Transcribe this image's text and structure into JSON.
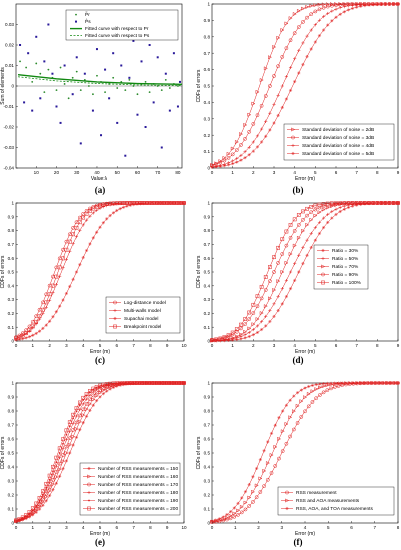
{
  "chart_data": [
    {
      "id": "a",
      "type": "scatter",
      "caption": "(a)",
      "xlabel": "Value:λ",
      "ylabel": "Sum of elements",
      "xlim": [
        0,
        82
      ],
      "ylim": [
        -0.04,
        0.04
      ],
      "xticks": [
        "10",
        "20",
        "30",
        "40",
        "50",
        "60",
        "70",
        "80"
      ],
      "yticks": [
        "-0.04",
        "-0.03",
        "-0.02",
        "-0.01",
        "0",
        "0.01",
        "0.02",
        "0.03"
      ],
      "legend": [
        "P̃r",
        "P̂s",
        "Fitted curve with respect to Pr",
        "Fitted curve with respect to Ps"
      ],
      "series": [
        {
          "name": "P̃r",
          "color": "#2b8a2b",
          "points": [
            [
              2,
              0.012
            ],
            [
              5,
              0.009
            ],
            [
              8,
              0.002
            ],
            [
              10,
              0.011
            ],
            [
              12,
              0.006
            ],
            [
              14,
              -0.003
            ],
            [
              16,
              0.008
            ],
            [
              18,
              0.004
            ],
            [
              20,
              -0.002
            ],
            [
              22,
              0.009
            ],
            [
              24,
              0.001
            ],
            [
              26,
              -0.006
            ],
            [
              28,
              0.004
            ],
            [
              30,
              0.007
            ],
            [
              32,
              -0.002
            ],
            [
              34,
              0.003
            ],
            [
              36,
              0.0
            ],
            [
              38,
              -0.004
            ],
            [
              40,
              0.005
            ],
            [
              42,
              0.002
            ],
            [
              44,
              -0.003
            ],
            [
              46,
              0.001
            ],
            [
              48,
              0.004
            ],
            [
              50,
              -0.001
            ],
            [
              52,
              0.002
            ],
            [
              54,
              -0.002
            ],
            [
              56,
              0.003
            ],
            [
              58,
              0.0
            ],
            [
              60,
              -0.004
            ],
            [
              62,
              0.001
            ],
            [
              64,
              0.002
            ],
            [
              66,
              -0.003
            ],
            [
              68,
              0.001
            ],
            [
              70,
              0.0
            ],
            [
              72,
              -0.002
            ],
            [
              74,
              0.003
            ],
            [
              76,
              -0.001
            ],
            [
              78,
              0.001
            ],
            [
              80,
              0.0
            ]
          ]
        },
        {
          "name": "P̂s",
          "color": "#2a1a9a",
          "points": [
            [
              2,
              0.02
            ],
            [
              4,
              -0.008
            ],
            [
              6,
              0.016
            ],
            [
              8,
              -0.012
            ],
            [
              10,
              0.024
            ],
            [
              12,
              -0.006
            ],
            [
              14,
              0.012
            ],
            [
              16,
              0.03
            ],
            [
              18,
              0.006
            ],
            [
              20,
              -0.01
            ],
            [
              22,
              -0.018
            ],
            [
              24,
              0.01
            ],
            [
              26,
              0.034
            ],
            [
              28,
              -0.004
            ],
            [
              30,
              0.014
            ],
            [
              32,
              -0.028
            ],
            [
              34,
              0.006
            ],
            [
              36,
              0.036
            ],
            [
              38,
              -0.012
            ],
            [
              40,
              0.018
            ],
            [
              42,
              -0.024
            ],
            [
              44,
              0.008
            ],
            [
              46,
              -0.006
            ],
            [
              48,
              0.016
            ],
            [
              50,
              -0.018
            ],
            [
              52,
              0.01
            ],
            [
              54,
              -0.034
            ],
            [
              56,
              0.004
            ],
            [
              58,
              0.022
            ],
            [
              60,
              -0.014
            ],
            [
              62,
              0.012
            ],
            [
              64,
              -0.02
            ],
            [
              66,
              0.02
            ],
            [
              68,
              -0.008
            ],
            [
              70,
              0.014
            ],
            [
              72,
              -0.03
            ],
            [
              74,
              0.006
            ],
            [
              76,
              -0.012
            ],
            [
              78,
              0.016
            ],
            [
              80,
              -0.01
            ],
            [
              81,
              0.002
            ]
          ]
        },
        {
          "name": "Fitted curve with respect to Pr",
          "color": "#118811",
          "line": [
            [
              1,
              0.0055
            ],
            [
              20,
              0.0035
            ],
            [
              40,
              0.002
            ],
            [
              60,
              0.0012
            ],
            [
              82,
              0.0008
            ]
          ]
        },
        {
          "name": "Fitted curve with respect to Ps",
          "color": "#118811",
          "line": [
            [
              1,
              0.0045
            ],
            [
              20,
              0.0025
            ],
            [
              40,
              0.0012
            ],
            [
              60,
              0.0005
            ],
            [
              82,
              0.0002
            ]
          ]
        }
      ]
    },
    {
      "id": "b",
      "type": "line",
      "caption": "(b)",
      "xlabel": "Error (m)",
      "ylabel": "CDFs of errors",
      "xlim": [
        0,
        9
      ],
      "ylim": [
        0,
        1
      ],
      "xticks": [
        "0",
        "1",
        "2",
        "3",
        "4",
        "5",
        "6",
        "7",
        "8",
        "9"
      ],
      "yticks": [
        "0",
        "0.1",
        "0.2",
        "0.3",
        "0.4",
        "0.5",
        "0.6",
        "0.7",
        "0.8",
        "0.9",
        "1"
      ],
      "legend_pos": "bottom-right",
      "series": [
        {
          "name": "Standard deviation of noise = 2dB",
          "marker": "tri",
          "mu": 2.3,
          "sd": 1.1
        },
        {
          "name": "Standard deviation of noise = 3dB",
          "marker": "circle",
          "mu": 2.8,
          "sd": 1.3
        },
        {
          "name": "Standard deviation of noise = 4dB",
          "marker": "plus",
          "mu": 3.4,
          "sd": 1.4
        },
        {
          "name": "Standard deviation of noise = 5dB",
          "marker": "star",
          "mu": 3.9,
          "sd": 1.5
        }
      ]
    },
    {
      "id": "c",
      "type": "line",
      "caption": "(c)",
      "xlabel": "Error (m)",
      "ylabel": "CDFs of errors",
      "xlim": [
        0,
        10
      ],
      "ylim": [
        0,
        1
      ],
      "xticks": [
        "0",
        "1",
        "2",
        "3",
        "4",
        "5",
        "6",
        "7",
        "8",
        "9",
        "10"
      ],
      "yticks": [
        "0",
        "0.1",
        "0.2",
        "0.3",
        "0.4",
        "0.5",
        "0.6",
        "0.7",
        "0.8",
        "0.9",
        "1"
      ],
      "legend_pos": "bottom-right",
      "series": [
        {
          "name": "Log-distance model",
          "marker": "circle",
          "mu": 2.3,
          "sd": 1.2
        },
        {
          "name": "Multi-walls model",
          "marker": "plus",
          "mu": 2.7,
          "sd": 1.3
        },
        {
          "name": "Supachai model",
          "marker": "star",
          "mu": 3.6,
          "sd": 1.5
        },
        {
          "name": "Breakpoint model",
          "marker": "square",
          "mu": 2.5,
          "sd": 1.2
        }
      ]
    },
    {
      "id": "d",
      "type": "line",
      "caption": "(d)",
      "xlabel": "Error (m)",
      "ylabel": "CDFs of errors",
      "xlim": [
        0,
        9
      ],
      "ylim": [
        0,
        1
      ],
      "xticks": [
        "0",
        "1",
        "2",
        "3",
        "4",
        "5",
        "6",
        "7",
        "8",
        "9"
      ],
      "yticks": [
        "0",
        "0.1",
        "0.2",
        "0.3",
        "0.4",
        "0.5",
        "0.6",
        "0.7",
        "0.8",
        "0.9",
        "1"
      ],
      "legend_pos": "top-right",
      "series": [
        {
          "name": "Ratio = 30%",
          "marker": "star",
          "mu": 4.2,
          "sd": 1.3
        },
        {
          "name": "Ratio = 50%",
          "marker": "plus",
          "mu": 3.8,
          "sd": 1.3
        },
        {
          "name": "Ratio = 70%",
          "marker": "tri",
          "mu": 3.4,
          "sd": 1.2
        },
        {
          "name": "Ratio = 90%",
          "marker": "circle",
          "mu": 3.0,
          "sd": 1.2
        },
        {
          "name": "Ratio = 100%",
          "marker": "square",
          "mu": 2.7,
          "sd": 1.1
        }
      ]
    },
    {
      "id": "e",
      "type": "line",
      "caption": "(e)",
      "xlabel": "Error (m)",
      "ylabel": "CDFs of errors",
      "xlim": [
        0,
        10
      ],
      "ylim": [
        0,
        1
      ],
      "xticks": [
        "0",
        "1",
        "2",
        "3",
        "4",
        "5",
        "6",
        "7",
        "8",
        "9",
        "10"
      ],
      "yticks": [
        "0",
        "0.1",
        "0.2",
        "0.3",
        "0.4",
        "0.5",
        "0.6",
        "0.7",
        "0.8",
        "0.9",
        "1"
      ],
      "legend_pos": "bottom-right",
      "series": [
        {
          "name": "Number of RSS measurements = 150",
          "marker": "star",
          "mu": 3.2,
          "sd": 1.4
        },
        {
          "name": "Number of RSS measurements = 160",
          "marker": "tri",
          "mu": 3.0,
          "sd": 1.35
        },
        {
          "name": "Number of RSS measurements = 170",
          "marker": "circle",
          "mu": 2.85,
          "sd": 1.3
        },
        {
          "name": "Number of RSS measurements = 180",
          "marker": "plus",
          "mu": 2.7,
          "sd": 1.25
        },
        {
          "name": "Number of RSS measurements = 190",
          "marker": "dot",
          "mu": 2.6,
          "sd": 1.2
        },
        {
          "name": "Number of RSS measurements = 200",
          "marker": "square",
          "mu": 2.5,
          "sd": 1.2
        }
      ]
    },
    {
      "id": "f",
      "type": "line",
      "caption": "(f)",
      "xlabel": "Error (m)",
      "ylabel": "CDFs of errors",
      "xlim": [
        0,
        8
      ],
      "ylim": [
        0,
        1
      ],
      "xticks": [
        "0",
        "1",
        "2",
        "3",
        "4",
        "5",
        "6",
        "7",
        "8"
      ],
      "yticks": [
        "0",
        "0.1",
        "0.2",
        "0.3",
        "0.4",
        "0.5",
        "0.6",
        "0.7",
        "0.8",
        "0.9",
        "1"
      ],
      "legend_pos": "bottom-right",
      "series": [
        {
          "name": "RSS measurement",
          "marker": "circle",
          "mu": 3.0,
          "sd": 1.2
        },
        {
          "name": "RSS and AOA measurements",
          "marker": "tri",
          "mu": 2.6,
          "sd": 1.1
        },
        {
          "name": "RSS, AOA, and TOA measurements",
          "marker": "star",
          "mu": 2.2,
          "sd": 1.0
        }
      ]
    }
  ],
  "colors": {
    "curve": "#e02020",
    "axis": "#000000",
    "grid": "#dddddd"
  }
}
